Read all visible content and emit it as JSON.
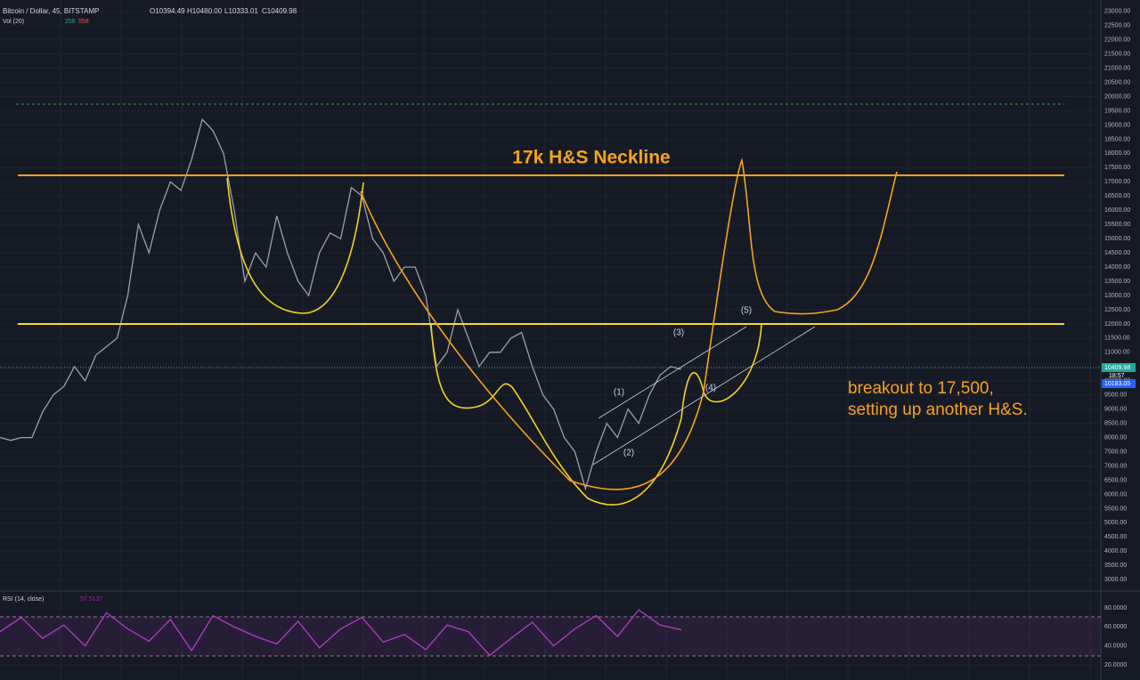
{
  "header": {
    "symbol": "Bitcoin / Dollar, 45, BITSTAMP",
    "open": "O10394.49",
    "high": "H10480.00",
    "low": "L10333.01",
    "close": "C10409.98",
    "volume_label": "Vol (20)",
    "volume_a": "256",
    "volume_b": "558"
  },
  "price_tags": {
    "last": "10409.98",
    "countdown": "18:57",
    "other": "10183.05"
  },
  "annotations": {
    "neckline": "17k H&S Neckline",
    "breakout_1": "breakout to 17,500,",
    "breakout_2": "setting up another H&S.",
    "w1": "(1)",
    "w2": "(2)",
    "w3": "(3)",
    "w4": "(4)",
    "w5": "(5)"
  },
  "chart_data": [
    {
      "type": "line",
      "color": "#9aa0a6",
      "ylim": [
        2600,
        23400
      ],
      "yticks": [
        {
          "value": 3000,
          "label": "3000.00"
        },
        {
          "value": 3500,
          "label": "3500.00"
        },
        {
          "value": 4000,
          "label": "4000.00"
        },
        {
          "value": 4500,
          "label": "4500.00"
        },
        {
          "value": 5000,
          "label": "5000.00"
        },
        {
          "value": 5500,
          "label": "5500.00"
        },
        {
          "value": 6000,
          "label": "6000.00"
        },
        {
          "value": 6500,
          "label": "6500.00"
        },
        {
          "value": 7000,
          "label": "7000.00"
        },
        {
          "value": 7500,
          "label": "7500.00"
        },
        {
          "value": 8000,
          "label": "8000.00"
        },
        {
          "value": 8500,
          "label": "8500.00"
        },
        {
          "value": 9000,
          "label": "9000.00"
        },
        {
          "value": 9500,
          "label": "9500.00"
        },
        {
          "value": 10000,
          "label": "10000.00"
        },
        {
          "value": 10500,
          "label": "10500.00"
        },
        {
          "value": 11000,
          "label": "11000.00"
        },
        {
          "value": 11500,
          "label": "11500.00"
        },
        {
          "value": 12000,
          "label": "12000.00"
        },
        {
          "value": 12500,
          "label": "12500.00"
        },
        {
          "value": 13000,
          "label": "13000.00"
        },
        {
          "value": 13500,
          "label": "13500.00"
        },
        {
          "value": 14000,
          "label": "14000.00"
        },
        {
          "value": 14500,
          "label": "14500.00"
        },
        {
          "value": 15000,
          "label": "15000.00"
        },
        {
          "value": 15500,
          "label": "15500.00"
        },
        {
          "value": 16000,
          "label": "16000.00"
        },
        {
          "value": 16500,
          "label": "16500.00"
        },
        {
          "value": 17000,
          "label": "17000.00"
        },
        {
          "value": 17500,
          "label": "17500.00"
        },
        {
          "value": 18000,
          "label": "18000.00"
        },
        {
          "value": 18500,
          "label": "18500.00"
        },
        {
          "value": 19000,
          "label": "19000.00"
        },
        {
          "value": 19500,
          "label": "19500.00"
        },
        {
          "value": 20000,
          "label": "20000.00"
        },
        {
          "value": 20500,
          "label": "20500.00"
        },
        {
          "value": 21000,
          "label": "21000.00"
        },
        {
          "value": 21500,
          "label": "21500.00"
        },
        {
          "value": 22000,
          "label": "22000.00"
        },
        {
          "value": 22500,
          "label": "22500.00"
        },
        {
          "value": 23000,
          "label": "23000.00"
        }
      ],
      "values": [
        8000,
        7900,
        8000,
        8000,
        8900,
        9500,
        9800,
        10500,
        10000,
        10900,
        11200,
        11500,
        13000,
        15500,
        14500,
        16000,
        17000,
        16700,
        17800,
        19200,
        18800,
        18000,
        16000,
        13500,
        14500,
        14000,
        15800,
        14500,
        13500,
        13000,
        14500,
        15200,
        15000,
        16800,
        16500,
        15000,
        14500,
        13500,
        14000,
        14000,
        13000,
        10500,
        11000,
        12500,
        11500,
        10500,
        11000,
        11000,
        11500,
        11700,
        10500,
        9500,
        9000,
        8000,
        7500,
        6200,
        7500,
        8500,
        8000,
        9000,
        8500,
        9500,
        10200,
        10500,
        10400
      ]
    },
    {
      "type": "line",
      "title": "RSI (14, close)",
      "value_label": "57.5137",
      "color": "#b23cc4",
      "ylim": [
        4,
        97
      ],
      "yticks": [
        {
          "value": 20,
          "label": "20.0000"
        },
        {
          "value": 40,
          "label": "40.0000"
        },
        {
          "value": 60,
          "label": "60.0000"
        },
        {
          "value": 80,
          "label": "80.0000"
        }
      ],
      "values": [
        55,
        70,
        48,
        62,
        40,
        75,
        58,
        45,
        68,
        35,
        72,
        60,
        50,
        42,
        66,
        38,
        58,
        70,
        44,
        52,
        36,
        62,
        55,
        30,
        48,
        65,
        40,
        58,
        72,
        50,
        78,
        62,
        57
      ]
    }
  ]
}
